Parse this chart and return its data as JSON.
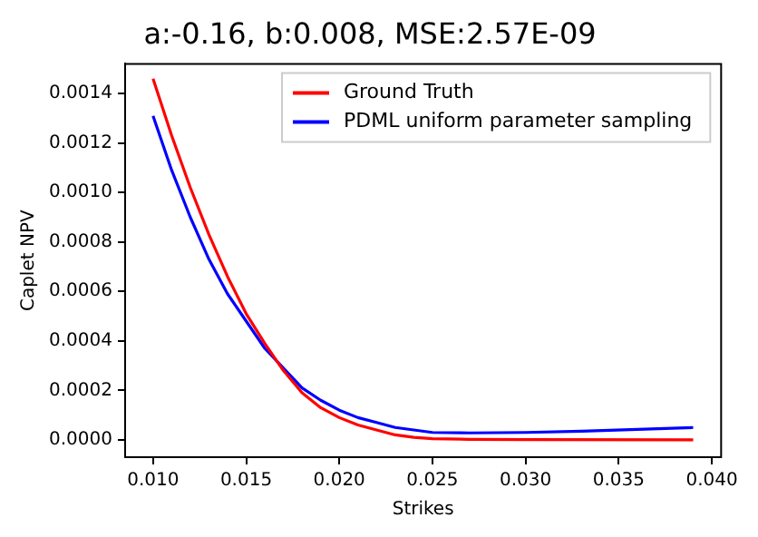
{
  "chart_data": {
    "type": "line",
    "title": "a:-0.16, b:0.008, MSE:2.57E-09",
    "xlabel": "Strikes",
    "ylabel": "Caplet NPV",
    "series": [
      {
        "name": "Ground Truth",
        "color": "#ff0000",
        "x": [
          0.01,
          0.011,
          0.012,
          0.013,
          0.014,
          0.015,
          0.016,
          0.017,
          0.018,
          0.019,
          0.02,
          0.021,
          0.022,
          0.023,
          0.024,
          0.025,
          0.027,
          0.03,
          0.039
        ],
        "values": [
          0.00146,
          0.00123,
          0.00102,
          0.00083,
          0.00066,
          0.00051,
          0.00039,
          0.00028,
          0.00019,
          0.00013,
          9e-05,
          6e-05,
          4e-05,
          2e-05,
          1e-05,
          5e-06,
          2e-06,
          1e-06,
          0.0
        ]
      },
      {
        "name": "PDML uniform parameter sampling",
        "color": "#0000ff",
        "x": [
          0.01,
          0.011,
          0.012,
          0.013,
          0.014,
          0.015,
          0.016,
          0.017,
          0.018,
          0.019,
          0.02,
          0.021,
          0.022,
          0.023,
          0.024,
          0.025,
          0.027,
          0.03,
          0.033,
          0.036,
          0.039
        ],
        "values": [
          0.00131,
          0.00109,
          0.0009,
          0.00073,
          0.00059,
          0.00048,
          0.00037,
          0.00029,
          0.00021,
          0.00016,
          0.00012,
          9e-05,
          7e-05,
          5e-05,
          4e-05,
          3e-05,
          2.8e-05,
          3e-05,
          3.5e-05,
          4.2e-05,
          5e-05
        ]
      }
    ],
    "xlim": [
      0.0085,
      0.0405
    ],
    "xticks": [
      {
        "value": 0.01,
        "label": "0.010"
      },
      {
        "value": 0.015,
        "label": "0.015"
      },
      {
        "value": 0.02,
        "label": "0.020"
      },
      {
        "value": 0.025,
        "label": "0.025"
      },
      {
        "value": 0.03,
        "label": "0.030"
      },
      {
        "value": 0.035,
        "label": "0.035"
      },
      {
        "value": 0.04,
        "label": "0.040"
      }
    ],
    "ylim": [
      -7e-05,
      0.00152
    ],
    "yticks": [
      {
        "value": 0,
        "label": "0.0000"
      },
      {
        "value": 0.0002,
        "label": "0.0002"
      },
      {
        "value": 0.0004,
        "label": "0.0004"
      },
      {
        "value": 0.0006,
        "label": "0.0006"
      },
      {
        "value": 0.0008,
        "label": "0.0008"
      },
      {
        "value": 0.001,
        "label": "0.0010"
      },
      {
        "value": 0.0012,
        "label": "0.0012"
      },
      {
        "value": 0.0014,
        "label": "0.0014"
      }
    ],
    "grid": false,
    "legend": "top right",
    "marker": "none",
    "line_style": "solid"
  }
}
